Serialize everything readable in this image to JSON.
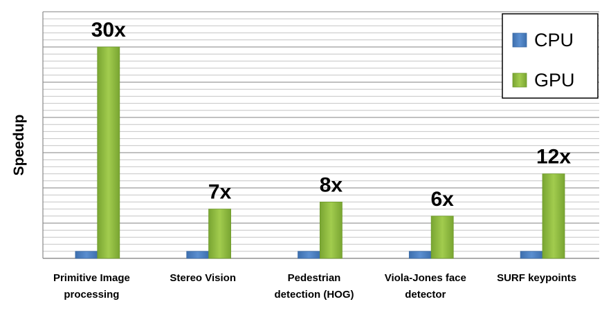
{
  "chart_data": {
    "type": "bar",
    "title": "",
    "xlabel": "",
    "ylabel": "Speedup",
    "categories": [
      [
        "Primitive Image",
        "processing"
      ],
      [
        "Stereo Vision"
      ],
      [
        "Pedestrian",
        "detection (HOG)"
      ],
      [
        "Viola-Jones face",
        "detector"
      ],
      [
        "SURF keypoints"
      ]
    ],
    "series": [
      {
        "name": "CPU",
        "color": "#4a7ebb",
        "values": [
          1,
          1,
          1,
          1,
          1
        ]
      },
      {
        "name": "GPU",
        "color": "#8cbb3c",
        "values": [
          30,
          7,
          8,
          6,
          12
        ]
      }
    ],
    "data_labels": [
      "30x",
      "7x",
      "8x",
      "6x",
      "12x"
    ],
    "ylim": [
      0,
      35
    ],
    "grid": true,
    "legend": "top-right"
  }
}
